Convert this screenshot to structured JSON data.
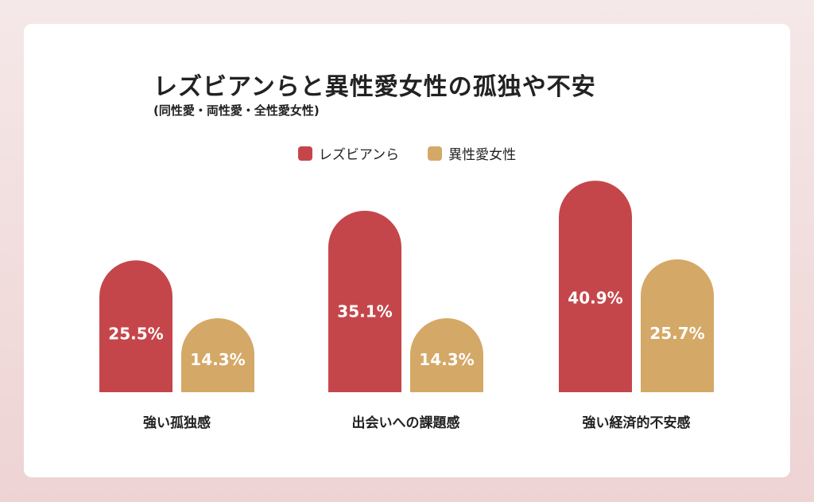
{
  "chart_data": {
    "type": "bar",
    "title": "レズビアンらと異性愛女性の孤独や不安",
    "subtitle": "(同性愛・両性愛・全性愛女性)",
    "categories": [
      "強い孤独感",
      "出会いへの課題感",
      "強い経済的不安感"
    ],
    "series": [
      {
        "name": "レズビアンら",
        "color": "#c5464a",
        "values": [
          25.5,
          35.1,
          40.9
        ],
        "labels": [
          "25.5%",
          "35.1%",
          "40.9%"
        ]
      },
      {
        "name": "異性愛女性",
        "color": "#d4a866",
        "values": [
          14.3,
          14.3,
          25.7
        ],
        "labels": [
          "14.3%",
          "14.3%",
          "25.7%"
        ]
      }
    ],
    "ylim": [
      0,
      45
    ],
    "legend": "top-center",
    "grid": false
  }
}
